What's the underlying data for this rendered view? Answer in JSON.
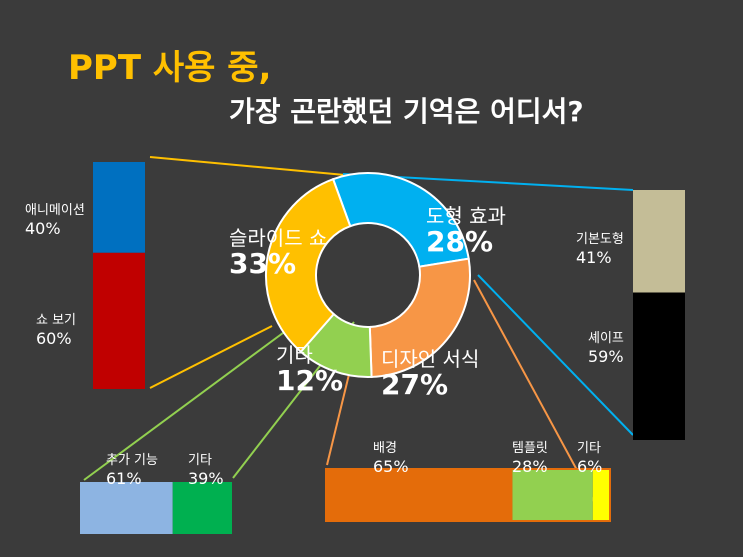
{
  "slide": {
    "title_line1": "PPT 사용 중,",
    "title_line2": "가장 곤란했던 기억은 어디서?"
  },
  "colors": {
    "background": "#3b3b3b",
    "title_accent": "#ffc000",
    "slideshow": "#ffc000",
    "shape": "#00b0f0",
    "design": "#f79646",
    "other": "#92d050",
    "animation": "#0070c0",
    "watch": "#c00000",
    "basic_shape": "#c4bd97",
    "shapes": "#000000",
    "add_feature": "#8db4e2",
    "other2": "#00b050",
    "background_fill": "#e46c0a",
    "template": "#92d050",
    "other3": "#ffff00"
  },
  "chart_data": [
    {
      "type": "pie",
      "title": "가장 곤란했던 기억",
      "categories": [
        "도형 효과",
        "디자인 서식",
        "기타",
        "슬라이드 쇼"
      ],
      "values": [
        28,
        27,
        12,
        33
      ],
      "labels": [
        {
          "name": "도형 효과",
          "value": "28%"
        },
        {
          "name": "디자인 서식",
          "value": "27%"
        },
        {
          "name": "기타",
          "value": "12%"
        },
        {
          "name": "슬라이드 쇼",
          "value": "33%"
        }
      ]
    },
    {
      "type": "bar",
      "stacked": true,
      "parent": "슬라이드 쇼",
      "categories": [
        "애니메이션",
        "쇼 보기"
      ],
      "values": [
        40,
        60
      ],
      "labels": [
        {
          "name": "애니메이션",
          "value": "40%"
        },
        {
          "name": "쇼 보기",
          "value": "60%"
        }
      ]
    },
    {
      "type": "bar",
      "stacked": true,
      "parent": "도형 효과",
      "categories": [
        "기본도형",
        "셰이프"
      ],
      "values": [
        41,
        59
      ],
      "labels": [
        {
          "name": "기본도형",
          "value": "41%"
        },
        {
          "name": "셰이프",
          "value": "59%"
        }
      ]
    },
    {
      "type": "bar",
      "stacked": true,
      "parent": "기타",
      "categories": [
        "추가 기능",
        "기타"
      ],
      "values": [
        61,
        39
      ],
      "labels": [
        {
          "name": "추가 기능",
          "value": "61%"
        },
        {
          "name": "기타",
          "value": "39%"
        }
      ]
    },
    {
      "type": "bar",
      "stacked": true,
      "parent": "디자인 서식",
      "categories": [
        "배경",
        "템플릿",
        "기타"
      ],
      "values": [
        65,
        28,
        6
      ],
      "labels": [
        {
          "name": "배경",
          "value": "65%"
        },
        {
          "name": "템플릿",
          "value": "28%"
        },
        {
          "name": "기타",
          "value": "6%"
        }
      ]
    }
  ]
}
